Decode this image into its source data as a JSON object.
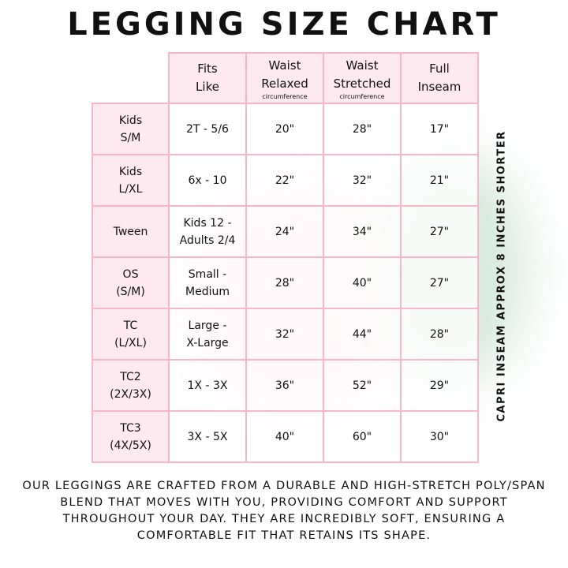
{
  "title": "LEGGING SIZE CHART",
  "table": {
    "headers": [
      {
        "line1": "Fits",
        "line2": "Like",
        "sub": ""
      },
      {
        "line1": "Waist",
        "line2": "Relaxed",
        "sub": "circumference"
      },
      {
        "line1": "Waist",
        "line2": "Stretched",
        "sub": "circumference"
      },
      {
        "line1": "Full",
        "line2": "Inseam",
        "sub": ""
      }
    ],
    "rows": [
      {
        "size1": "Kids",
        "size2": "S/M",
        "fits1": "2T - 5/6",
        "fits2": "",
        "relaxed": "20\"",
        "stretched": "28\"",
        "inseam": "17\""
      },
      {
        "size1": "Kids",
        "size2": "L/XL",
        "fits1": "6x - 10",
        "fits2": "",
        "relaxed": "22\"",
        "stretched": "32\"",
        "inseam": "21\""
      },
      {
        "size1": "Tween",
        "size2": "",
        "fits1": "Kids 12 -",
        "fits2": "Adults 2/4",
        "relaxed": "24\"",
        "stretched": "34\"",
        "inseam": "27\""
      },
      {
        "size1": "OS",
        "size2": "(S/M)",
        "fits1": "Small -",
        "fits2": "Medium",
        "relaxed": "28\"",
        "stretched": "40\"",
        "inseam": "27\""
      },
      {
        "size1": "TC",
        "size2": "(L/XL)",
        "fits1": "Large -",
        "fits2": "X-Large",
        "relaxed": "32\"",
        "stretched": "44\"",
        "inseam": "28\""
      },
      {
        "size1": "TC2",
        "size2": "(2X/3X)",
        "fits1": "1X - 3X",
        "fits2": "",
        "relaxed": "36\"",
        "stretched": "52\"",
        "inseam": "29\""
      },
      {
        "size1": "TC3",
        "size2": "(4X/5X)",
        "fits1": "3X - 5X",
        "fits2": "",
        "relaxed": "40\"",
        "stretched": "60\"",
        "inseam": "30\""
      }
    ]
  },
  "side_note": "CAPRI INSEAM APPROX 8 INCHES SHORTER",
  "description": "Our leggings are crafted from a durable and high-stretch poly/span blend that moves with you, providing comfort and support throughout your day. They are incredibly soft, ensuring a comfortable fit that retains its shape.",
  "colors": {
    "header_bg": "#fde9ef",
    "border": "#f7b7c8"
  }
}
